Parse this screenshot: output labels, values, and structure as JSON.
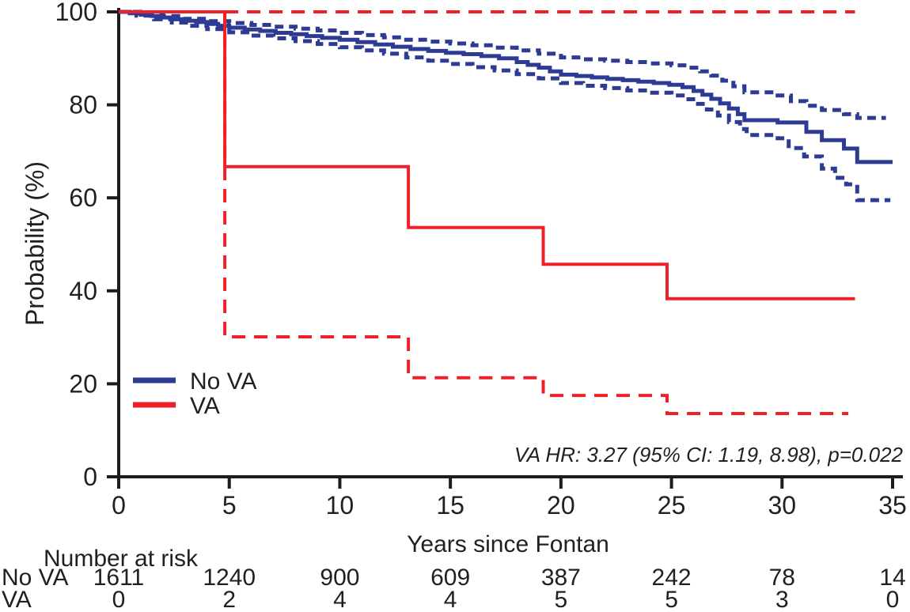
{
  "figure": {
    "background": "#ffffff",
    "text_color": "#231f20",
    "axis_color": "#1c1c1c"
  },
  "chart_data": {
    "type": "line",
    "subtype": "kaplan-meier-step",
    "title": "",
    "xlabel": "Years since Fontan",
    "ylabel": "Probability (%)",
    "xlim": [
      0,
      35
    ],
    "ylim": [
      0,
      100
    ],
    "xticks": [
      0,
      5,
      10,
      15,
      20,
      25,
      30,
      35
    ],
    "yticks": [
      0,
      20,
      40,
      60,
      80,
      100
    ],
    "grid": false,
    "legend_position": "left-middle-inside",
    "annotation": "VA HR: 3.27 (95% CI: 1.19, 8.98), p=0.022",
    "legend": [
      {
        "label": "No VA",
        "color": "#2e3b94"
      },
      {
        "label": "VA",
        "color": "#ee2128"
      }
    ],
    "series": [
      {
        "name": "No VA upper 95% CI",
        "color": "#2e3b94",
        "style": "dashed",
        "dash": "11 7",
        "width": 5,
        "end_t": 34.7,
        "points": [
          [
            0,
            100
          ],
          [
            1,
            99.6
          ],
          [
            2,
            99.1
          ],
          [
            3,
            98.5
          ],
          [
            4,
            98
          ],
          [
            5,
            97.6
          ],
          [
            6,
            97.2
          ],
          [
            7,
            96.8
          ],
          [
            8,
            96.4
          ],
          [
            9,
            96
          ],
          [
            10,
            95.5
          ],
          [
            11,
            95
          ],
          [
            12,
            94.5
          ],
          [
            13,
            94
          ],
          [
            14,
            93.6
          ],
          [
            15,
            93.2
          ],
          [
            16,
            92.8
          ],
          [
            17,
            92.3
          ],
          [
            18,
            91.7
          ],
          [
            19,
            91
          ],
          [
            20,
            90.2
          ],
          [
            21,
            89.8
          ],
          [
            22,
            89.5
          ],
          [
            23,
            89.2
          ],
          [
            24,
            88.9
          ],
          [
            25,
            88.5
          ],
          [
            25.8,
            88
          ],
          [
            26.3,
            87.2
          ],
          [
            26.8,
            86.3
          ],
          [
            27.3,
            85.2
          ],
          [
            27.8,
            84
          ],
          [
            28.3,
            82.7
          ],
          [
            29.8,
            82
          ],
          [
            30.4,
            80.8
          ],
          [
            31.1,
            79.8
          ],
          [
            31.8,
            78.9
          ],
          [
            32.8,
            78
          ],
          [
            33.4,
            77.2
          ]
        ]
      },
      {
        "name": "No VA lower 95% CI",
        "color": "#2e3b94",
        "style": "dashed",
        "dash": "11 7",
        "width": 5,
        "end_t": 34.9,
        "points": [
          [
            0,
            100
          ],
          [
            0.8,
            99.2
          ],
          [
            1.6,
            98.4
          ],
          [
            2.4,
            97.7
          ],
          [
            3.2,
            97
          ],
          [
            4,
            96.3
          ],
          [
            5,
            95.6
          ],
          [
            6,
            94.9
          ],
          [
            7,
            94.3
          ],
          [
            8,
            93.7
          ],
          [
            9,
            93.1
          ],
          [
            10,
            92.4
          ],
          [
            11,
            91.7
          ],
          [
            12,
            91
          ],
          [
            13,
            90.2
          ],
          [
            14,
            89.5
          ],
          [
            15,
            88.8
          ],
          [
            16,
            88.1
          ],
          [
            17,
            87.4
          ],
          [
            18,
            86.6
          ],
          [
            19,
            85.7
          ],
          [
            20,
            84.7
          ],
          [
            21,
            84.1
          ],
          [
            22,
            83.6
          ],
          [
            23,
            83.1
          ],
          [
            24,
            82.6
          ],
          [
            25,
            82
          ],
          [
            25.6,
            81.2
          ],
          [
            26.1,
            80.2
          ],
          [
            26.6,
            79
          ],
          [
            27.1,
            77.7
          ],
          [
            27.6,
            76.3
          ],
          [
            28.1,
            74.8
          ],
          [
            28.4,
            73.5
          ],
          [
            29.8,
            72.8
          ],
          [
            30.3,
            70.7
          ],
          [
            31,
            68.9
          ],
          [
            31.8,
            66.3
          ],
          [
            32.4,
            64.3
          ],
          [
            32.9,
            62.9
          ],
          [
            33.4,
            59.5
          ]
        ]
      },
      {
        "name": "No VA",
        "color": "#2e3b94",
        "style": "solid",
        "dash": "",
        "width": 5,
        "end_t": 35,
        "points": [
          [
            0,
            100
          ],
          [
            0.5,
            99.7
          ],
          [
            1,
            99.4
          ],
          [
            1.5,
            99.1
          ],
          [
            2,
            98.8
          ],
          [
            2.5,
            98.4
          ],
          [
            3,
            98.1
          ],
          [
            3.5,
            97.8
          ],
          [
            4,
            97.4
          ],
          [
            4.5,
            97
          ],
          [
            5,
            96.6
          ],
          [
            5.7,
            96.2
          ],
          [
            6.4,
            95.9
          ],
          [
            7.1,
            95.5
          ],
          [
            7.8,
            95.2
          ],
          [
            8.5,
            94.8
          ],
          [
            9.2,
            94.4
          ],
          [
            10,
            94
          ],
          [
            10.8,
            93.5
          ],
          [
            11.6,
            93
          ],
          [
            12.4,
            92.5
          ],
          [
            13.2,
            92
          ],
          [
            14,
            91.6
          ],
          [
            14.8,
            91.2
          ],
          [
            15.6,
            90.9
          ],
          [
            16.4,
            90.5
          ],
          [
            17.2,
            90
          ],
          [
            18,
            89.2
          ],
          [
            18.5,
            88.6
          ],
          [
            19,
            88
          ],
          [
            19.5,
            87.2
          ],
          [
            20,
            86.5
          ],
          [
            20.7,
            86.2
          ],
          [
            21.4,
            85.9
          ],
          [
            22.1,
            85.6
          ],
          [
            22.8,
            85.3
          ],
          [
            23.5,
            85
          ],
          [
            24.2,
            84.7
          ],
          [
            24.9,
            84.3
          ],
          [
            25.5,
            83.8
          ],
          [
            26,
            83
          ],
          [
            26.4,
            82.2
          ],
          [
            26.8,
            81.3
          ],
          [
            27.2,
            80.3
          ],
          [
            27.6,
            79.2
          ],
          [
            28,
            78
          ],
          [
            28.3,
            76.7
          ],
          [
            29.8,
            76.2
          ],
          [
            31.1,
            74.2
          ],
          [
            31.8,
            72.4
          ],
          [
            32.8,
            70.6
          ],
          [
            33.4,
            67.7
          ]
        ]
      },
      {
        "name": "VA upper 95% CI",
        "color": "#ee2128",
        "style": "dashed",
        "dash": "17 11",
        "width": 4,
        "end_t": 33.3,
        "points": [
          [
            4.8,
            100
          ]
        ]
      },
      {
        "name": "VA lower 95% CI",
        "color": "#ee2128",
        "style": "dashed",
        "dash": "17 11",
        "width": 4,
        "end_t": 33.0,
        "points": [
          [
            4.8,
            100
          ],
          [
            4.8,
            30.1
          ],
          [
            13.1,
            21.3
          ],
          [
            19.2,
            17.5
          ],
          [
            24.8,
            13.6
          ]
        ]
      },
      {
        "name": "VA",
        "color": "#ee2128",
        "style": "solid",
        "dash": "",
        "width": 4,
        "end_t": 33.3,
        "points": [
          [
            0,
            100
          ],
          [
            4.8,
            66.7
          ],
          [
            13.1,
            53.6
          ],
          [
            19.2,
            45.7
          ],
          [
            24.8,
            38.3
          ]
        ]
      }
    ],
    "risk_table": {
      "title": "Number at risk",
      "times": [
        0,
        5,
        10,
        15,
        20,
        25,
        30,
        35
      ],
      "rows": [
        {
          "label": "No VA",
          "counts": [
            "1611",
            "1240",
            "900",
            "609",
            "387",
            "242",
            "78",
            "14"
          ]
        },
        {
          "label": "VA",
          "counts": [
            "0",
            "2",
            "4",
            "4",
            "5",
            "5",
            "3",
            "0"
          ]
        }
      ]
    }
  }
}
